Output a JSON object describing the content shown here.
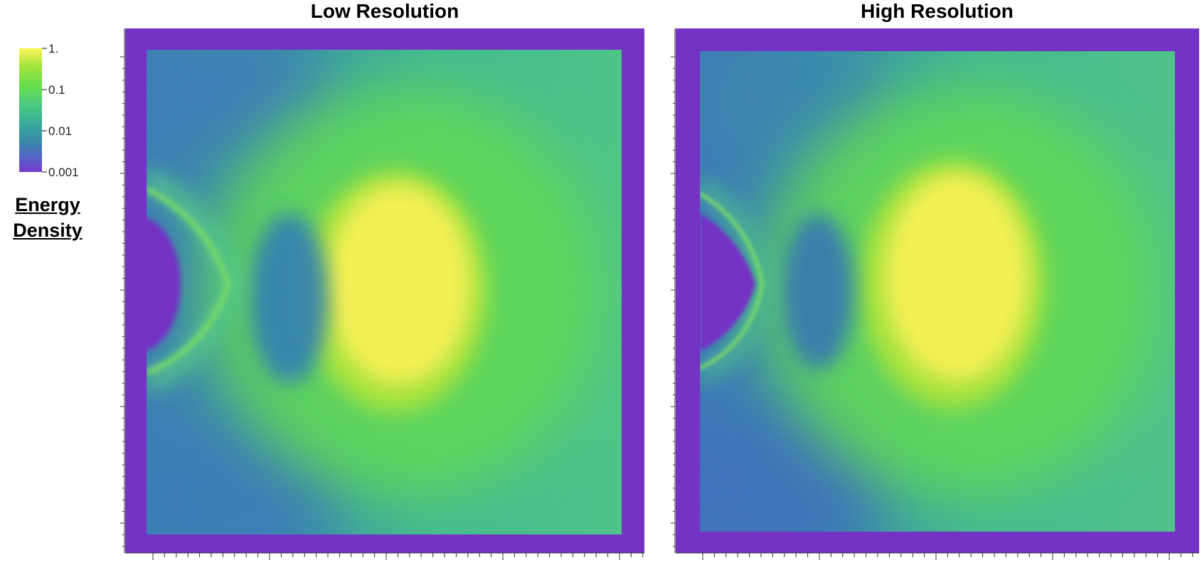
{
  "chart_data": [
    {
      "type": "heatmap",
      "title": "Low Resolution",
      "colorbar": {
        "title_lines": [
          "Energy",
          "Density"
        ],
        "ticks": [
          "1.",
          "0.1",
          "0.01",
          "0.001"
        ],
        "scale": "log",
        "range": [
          0.001,
          1
        ],
        "colormap": "viridis-like (purple → blue → teal → green → yellow)"
      }
    },
    {
      "type": "heatmap",
      "title": "High Resolution"
    }
  ],
  "colors": {
    "frame": "#7433c4",
    "low": "#7a3bcc",
    "mid": "#36a99a",
    "high": "#fdf553"
  }
}
